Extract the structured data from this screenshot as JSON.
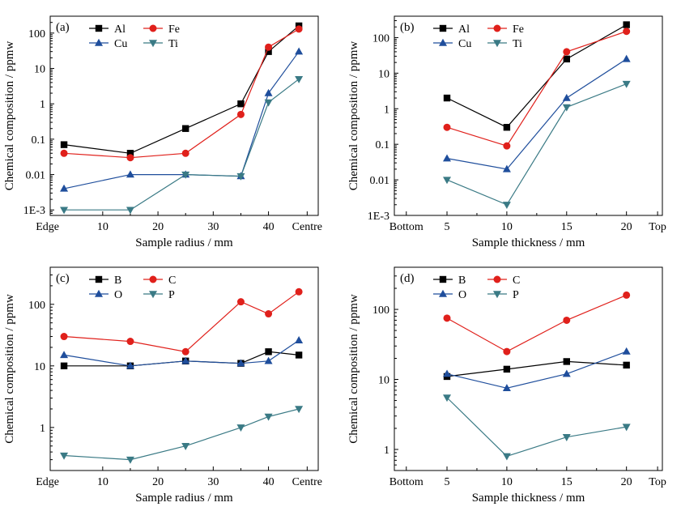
{
  "chart_data": [
    {
      "panel": "(a)",
      "type": "line",
      "xlabel": "Sample radius / mm",
      "ylabel": "Chemical composition / ppmw",
      "yscale": "log",
      "ylim": [
        0.0007,
        300
      ],
      "xlim": [
        0.5,
        49
      ],
      "x_ticks": [
        {
          "v": 0,
          "label": "Edge"
        },
        {
          "v": 10,
          "label": "10"
        },
        {
          "v": 20,
          "label": "20"
        },
        {
          "v": 30,
          "label": "30"
        },
        {
          "v": 40,
          "label": "40"
        },
        {
          "v": 47,
          "label": "Centre"
        }
      ],
      "y_ticks": [
        {
          "v": 0.001,
          "label": "1E-3"
        },
        {
          "v": 0.01,
          "label": "0.01"
        },
        {
          "v": 0.1,
          "label": "0.1"
        },
        {
          "v": 1,
          "label": "1"
        },
        {
          "v": 10,
          "label": "10"
        },
        {
          "v": 100,
          "label": "100"
        }
      ],
      "legend_position": "top-left",
      "series": [
        {
          "name": "Al",
          "color": "#000000",
          "marker": "square",
          "x": [
            3,
            15,
            25,
            35,
            40,
            45.5
          ],
          "y": [
            0.07,
            0.04,
            0.2,
            1.0,
            30,
            160
          ]
        },
        {
          "name": "Fe",
          "color": "#e0201b",
          "marker": "circle",
          "x": [
            3,
            15,
            25,
            35,
            40,
            45.5
          ],
          "y": [
            0.04,
            0.03,
            0.04,
            0.5,
            40,
            130
          ]
        },
        {
          "name": "Cu",
          "color": "#1f4e9c",
          "marker": "triangle-up",
          "x": [
            3,
            15,
            25,
            35,
            40,
            45.5
          ],
          "y": [
            0.004,
            0.01,
            0.01,
            0.009,
            2,
            30
          ]
        },
        {
          "name": "Ti",
          "color": "#3a7a85",
          "marker": "triangle-down",
          "x": [
            3,
            15,
            25,
            35,
            40,
            45.5
          ],
          "y": [
            0.001,
            0.001,
            0.01,
            0.009,
            1.1,
            5
          ]
        }
      ]
    },
    {
      "panel": "(b)",
      "type": "line",
      "xlabel": "Sample thickness / mm",
      "ylabel": "Chemical composition / ppmw",
      "yscale": "log",
      "ylim": [
        0.001,
        400
      ],
      "xlim": [
        0.6,
        23
      ],
      "x_ticks": [
        {
          "v": 1.6,
          "label": "Bottom"
        },
        {
          "v": 5,
          "label": "5"
        },
        {
          "v": 10,
          "label": "10"
        },
        {
          "v": 15,
          "label": "15"
        },
        {
          "v": 20,
          "label": "20"
        },
        {
          "v": 22.6,
          "label": "Top"
        }
      ],
      "y_ticks": [
        {
          "v": 0.001,
          "label": "1E-3"
        },
        {
          "v": 0.01,
          "label": "0.01"
        },
        {
          "v": 0.1,
          "label": "0.1"
        },
        {
          "v": 1,
          "label": "1"
        },
        {
          "v": 10,
          "label": "10"
        },
        {
          "v": 100,
          "label": "100"
        }
      ],
      "legend_position": "top-left",
      "series": [
        {
          "name": "Al",
          "color": "#000000",
          "marker": "square",
          "x": [
            5,
            10,
            15,
            20
          ],
          "y": [
            2,
            0.3,
            25,
            230
          ]
        },
        {
          "name": "Fe",
          "color": "#e0201b",
          "marker": "circle",
          "x": [
            5,
            10,
            15,
            20
          ],
          "y": [
            0.3,
            0.09,
            40,
            150
          ]
        },
        {
          "name": "Cu",
          "color": "#1f4e9c",
          "marker": "triangle-up",
          "x": [
            5,
            10,
            15,
            20
          ],
          "y": [
            0.04,
            0.02,
            2,
            25
          ]
        },
        {
          "name": "Ti",
          "color": "#3a7a85",
          "marker": "triangle-down",
          "x": [
            5,
            10,
            15,
            20
          ],
          "y": [
            0.01,
            0.002,
            1.1,
            5
          ]
        }
      ]
    },
    {
      "panel": "(c)",
      "type": "line",
      "xlabel": "Sample radius / mm",
      "ylabel": "Chemical composition / ppmw",
      "yscale": "log",
      "ylim": [
        0.2,
        400
      ],
      "xlim": [
        0.5,
        49
      ],
      "x_ticks": [
        {
          "v": 0,
          "label": "Edge"
        },
        {
          "v": 10,
          "label": "10"
        },
        {
          "v": 20,
          "label": "20"
        },
        {
          "v": 30,
          "label": "30"
        },
        {
          "v": 40,
          "label": "40"
        },
        {
          "v": 47,
          "label": "Centre"
        }
      ],
      "y_ticks": [
        {
          "v": 1,
          "label": "1"
        },
        {
          "v": 10,
          "label": "10"
        },
        {
          "v": 100,
          "label": "100"
        }
      ],
      "legend_position": "top-left",
      "series": [
        {
          "name": "B",
          "color": "#000000",
          "marker": "square",
          "x": [
            3,
            15,
            25,
            35,
            40,
            45.5
          ],
          "y": [
            10,
            10,
            12,
            11,
            17,
            15
          ]
        },
        {
          "name": "C",
          "color": "#e0201b",
          "marker": "circle",
          "x": [
            3,
            15,
            25,
            35,
            40,
            45.5
          ],
          "y": [
            30,
            25,
            17,
            110,
            70,
            160
          ]
        },
        {
          "name": "O",
          "color": "#1f4e9c",
          "marker": "triangle-up",
          "x": [
            3,
            15,
            25,
            35,
            40,
            45.5
          ],
          "y": [
            15,
            10,
            12,
            11,
            12,
            26
          ]
        },
        {
          "name": "P",
          "color": "#3a7a85",
          "marker": "triangle-down",
          "x": [
            3,
            15,
            25,
            35,
            40,
            45.5
          ],
          "y": [
            0.35,
            0.3,
            0.5,
            1.0,
            1.5,
            2.0
          ]
        }
      ]
    },
    {
      "panel": "(d)",
      "type": "line",
      "xlabel": "Sample thickness / mm",
      "ylabel": "Chemical composition / ppmw",
      "yscale": "log",
      "ylim": [
        0.5,
        400
      ],
      "xlim": [
        0.6,
        23
      ],
      "x_ticks": [
        {
          "v": 1.6,
          "label": "Bottom"
        },
        {
          "v": 5,
          "label": "5"
        },
        {
          "v": 10,
          "label": "10"
        },
        {
          "v": 15,
          "label": "15"
        },
        {
          "v": 20,
          "label": "20"
        },
        {
          "v": 22.6,
          "label": "Top"
        }
      ],
      "y_ticks": [
        {
          "v": 1,
          "label": "1"
        },
        {
          "v": 10,
          "label": "10"
        },
        {
          "v": 100,
          "label": "100"
        }
      ],
      "legend_position": "top-left",
      "series": [
        {
          "name": "B",
          "color": "#000000",
          "marker": "square",
          "x": [
            5,
            10,
            15,
            20
          ],
          "y": [
            11,
            14,
            18,
            16
          ]
        },
        {
          "name": "C",
          "color": "#e0201b",
          "marker": "circle",
          "x": [
            5,
            10,
            15,
            20
          ],
          "y": [
            75,
            25,
            70,
            160
          ]
        },
        {
          "name": "O",
          "color": "#1f4e9c",
          "marker": "triangle-up",
          "x": [
            5,
            10,
            15,
            20
          ],
          "y": [
            12,
            7.5,
            12,
            25
          ]
        },
        {
          "name": "P",
          "color": "#3a7a85",
          "marker": "triangle-down",
          "x": [
            5,
            10,
            15,
            20
          ],
          "y": [
            5.5,
            0.8,
            1.5,
            2.1
          ]
        }
      ]
    }
  ]
}
